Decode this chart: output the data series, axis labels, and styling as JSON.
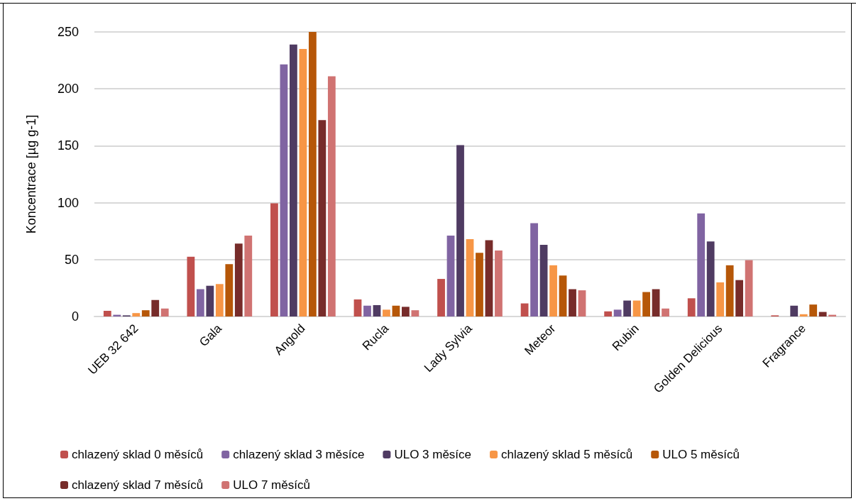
{
  "chart_data": {
    "type": "bar",
    "ylabel": "Koncentrace [µg g-1]",
    "categories": [
      "UEB 32 642",
      "Gala",
      "Angold",
      "Rucla",
      "Lady Sylvia",
      "Meteor",
      "Rubin",
      "Golden Delicious",
      "Fragrance"
    ],
    "series": [
      {
        "name": "chlazený sklad 0 měsíců",
        "color": "#c0504d",
        "values": [
          5,
          52.5,
          99.5,
          15,
          33,
          11.5,
          4.5,
          16,
          1
        ]
      },
      {
        "name": "chlazený sklad 3 měsíce",
        "color": "#8064a2",
        "values": [
          1.5,
          24,
          221.5,
          9.5,
          71,
          82,
          6,
          90.5,
          null
        ]
      },
      {
        "name": "ULO 3 měsíce",
        "color": "#4f3b62",
        "values": [
          1,
          27,
          239,
          10,
          150.5,
          63,
          14,
          66,
          9.5
        ]
      },
      {
        "name": "chlazený sklad 5 měsíců",
        "color": "#f79646",
        "values": [
          3,
          28.5,
          235,
          6,
          68,
          45,
          14,
          30,
          2
        ]
      },
      {
        "name": "ULO 5 měsíců",
        "color": "#b65708",
        "values": [
          5.5,
          46,
          250,
          9.5,
          56,
          36,
          21.5,
          45,
          10.5
        ]
      },
      {
        "name": "chlazený sklad 7 měsíců",
        "color": "#772c2a",
        "values": [
          14.5,
          64,
          172.5,
          8.5,
          67,
          24,
          24,
          32,
          4
        ]
      },
      {
        "name": "ULO 7 měsíců",
        "color": "#d07372",
        "values": [
          7,
          71,
          211,
          5.5,
          58,
          23,
          7,
          49.5,
          1.5
        ]
      }
    ],
    "ylim": [
      0,
      250
    ],
    "yticks": [
      0,
      50,
      100,
      150,
      200,
      250
    ],
    "grid": "y",
    "legend": "bottom"
  }
}
